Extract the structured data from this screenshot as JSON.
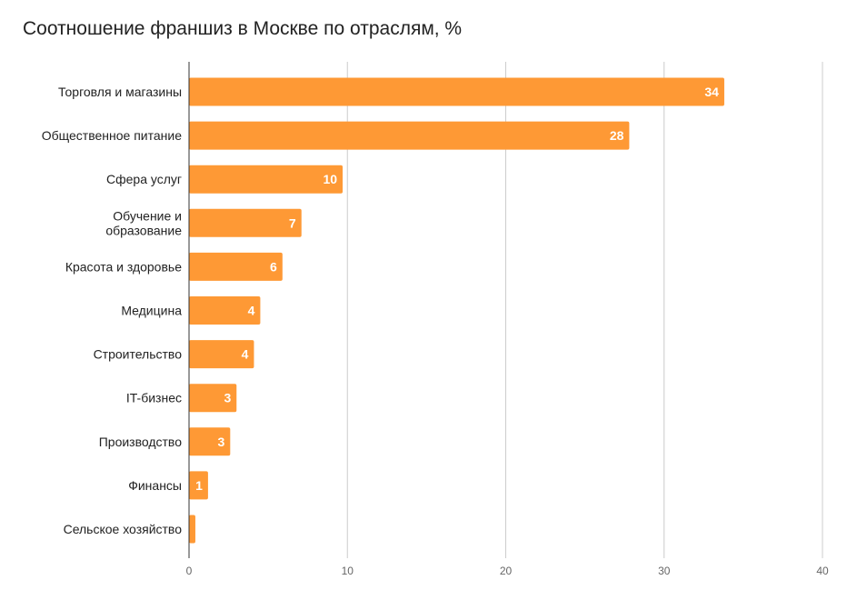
{
  "chart_data": {
    "type": "bar",
    "orientation": "horizontal",
    "title": "Соотношение франшиз в Москве по отраслям, %",
    "categories": [
      [
        "Торговля и магазины"
      ],
      [
        "Общественное питание"
      ],
      [
        "Сфера услуг"
      ],
      [
        "Обучение и",
        "образование"
      ],
      [
        "Красота и здоровье"
      ],
      [
        "Медицина"
      ],
      [
        "Строительство"
      ],
      [
        "IT-бизнес"
      ],
      [
        "Производство"
      ],
      [
        "Финансы"
      ],
      [
        "Сельское хозяйство"
      ]
    ],
    "values": [
      33.8,
      27.8,
      9.7,
      7.1,
      5.9,
      4.5,
      4.1,
      3.0,
      2.6,
      1.2,
      0.4
    ],
    "data_labels": [
      "34",
      "28",
      "10",
      "7",
      "6",
      "4",
      "4",
      "3",
      "3",
      "1",
      ""
    ],
    "xlim": [
      0,
      40
    ],
    "xticks": [
      0,
      10,
      20,
      30,
      40
    ],
    "grid": true,
    "bar_color": "#fe9935",
    "xlabel": "",
    "ylabel": ""
  }
}
